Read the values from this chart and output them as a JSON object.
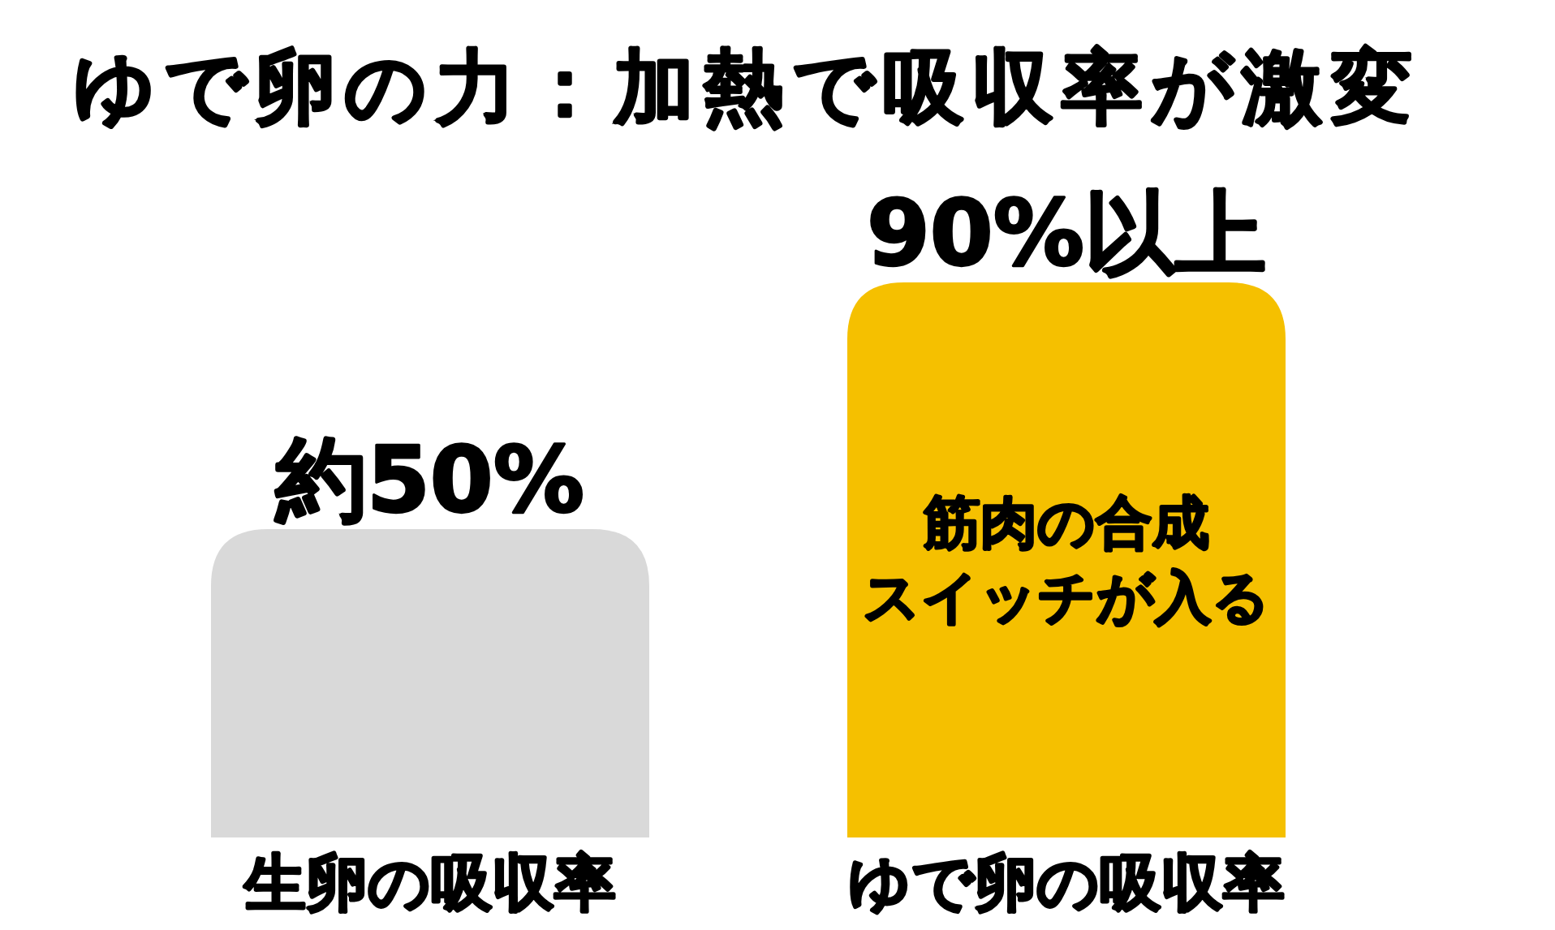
{
  "chart_data": {
    "type": "bar",
    "title": "ゆで卵の力：加熱で吸収率が激変",
    "categories": [
      "生卵の吸収率",
      "ゆで卵の吸収率"
    ],
    "values": [
      50,
      90
    ],
    "colors": [
      "#d9d9d9",
      "#f5c000"
    ],
    "value_labels": [
      "約50%",
      "90%以上"
    ],
    "annotations": [
      "筋肉の合成スイッチが入る"
    ]
  }
}
